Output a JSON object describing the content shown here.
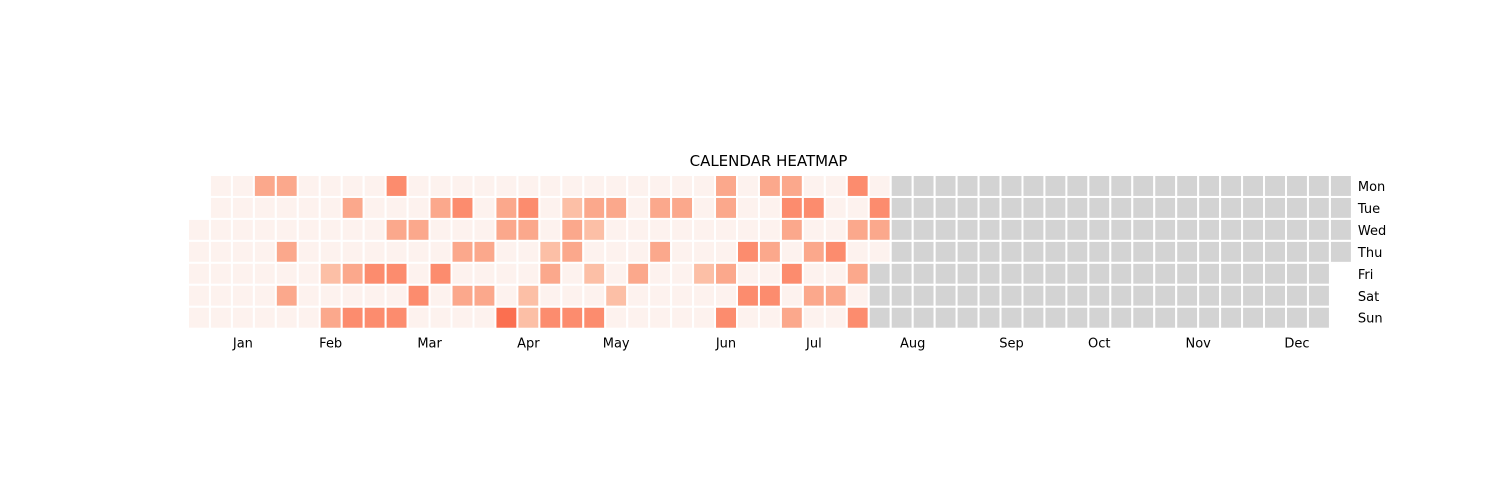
{
  "chart_data": {
    "type": "heatmap",
    "title": "CALENDAR HEATMAP",
    "days": [
      "Mon",
      "Tue",
      "Wed",
      "Thu",
      "Fri",
      "Sat",
      "Sun"
    ],
    "months": [
      "Jan",
      "Feb",
      "Mar",
      "Apr",
      "May",
      "Jun",
      "Jul",
      "Aug",
      "Sep",
      "Oct",
      "Nov",
      "Dec"
    ],
    "week_count": 53,
    "first_week_starts_day": 2,
    "last_week_ends_day": 3,
    "data_weeks": 32,
    "last_data_day": 3,
    "scale_max": 4,
    "value_rows": [
      [
        0,
        0,
        2,
        2,
        0,
        0,
        0,
        0,
        3,
        0,
        0,
        0,
        0,
        0,
        0,
        0,
        0,
        0,
        0,
        0,
        0,
        0,
        0,
        2,
        0,
        2,
        2,
        0,
        0,
        3,
        0,
        0
      ],
      [
        0,
        0,
        0,
        0,
        0,
        0,
        2,
        0,
        0,
        0,
        2,
        3,
        0,
        2,
        3,
        0,
        1,
        2,
        2,
        0,
        2,
        2,
        0,
        2,
        0,
        0,
        3,
        3,
        0,
        0,
        3
      ],
      [
        0,
        0,
        0,
        0,
        0,
        0,
        0,
        0,
        2,
        2,
        0,
        0,
        0,
        2,
        2,
        0,
        2,
        1,
        0,
        0,
        0,
        0,
        0,
        0,
        0,
        0,
        2,
        0,
        0,
        2,
        2
      ],
      [
        0,
        0,
        0,
        2,
        0,
        0,
        0,
        0,
        0,
        0,
        0,
        2,
        2,
        0,
        0,
        1,
        2,
        0,
        0,
        0,
        2,
        0,
        0,
        0,
        3,
        2,
        0,
        2,
        3,
        0,
        0,
        2
      ],
      [
        0,
        0,
        0,
        0,
        0,
        1,
        2,
        3,
        3,
        0,
        3,
        0,
        0,
        0,
        0,
        2,
        0,
        1,
        0,
        2,
        0,
        0,
        1,
        2,
        0,
        0,
        3,
        0,
        0,
        2,
        2,
        0
      ],
      [
        0,
        0,
        0,
        2,
        0,
        0,
        0,
        0,
        0,
        3,
        0,
        2,
        2,
        0,
        1,
        0,
        0,
        0,
        1,
        0,
        0,
        0,
        0,
        0,
        3,
        3,
        0,
        2,
        2,
        0,
        0
      ],
      [
        0,
        0,
        0,
        0,
        0,
        2,
        3,
        3,
        3,
        0,
        0,
        0,
        0,
        4,
        1,
        3,
        3,
        3,
        0,
        0,
        0,
        0,
        0,
        3,
        0,
        0,
        2,
        0,
        0,
        3,
        0
      ]
    ],
    "colors": {
      "scale": [
        "#fdf2ee",
        "#fcbfa6",
        "#fba88c",
        "#fc8c6e",
        "#fb6f50"
      ],
      "empty": "#d3d3d3",
      "background": "#ffffff"
    },
    "legend": "none",
    "grid": false
  }
}
